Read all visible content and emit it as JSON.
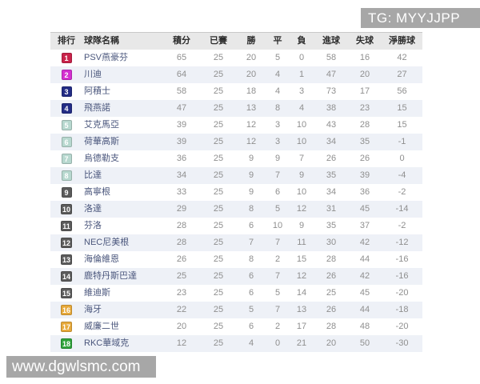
{
  "watermarks": {
    "telegram": "TG: MYYJJPP",
    "website": "www.dgwlsmc.com"
  },
  "colors": {
    "banner_bg": "#a7a7a7",
    "header_bg": "#e8e8e8",
    "row_alt_bg": "#eef1f7",
    "team_name_text": "#4a567c",
    "number_text": "#8f8f8f",
    "badge_champion": "#c9234a",
    "badge_second": "#d42fd0",
    "badge_cl": "#232c85",
    "badge_europa": "#b7d8cf",
    "badge_mid": "#5b5b5b",
    "badge_playoff": "#e7a93a",
    "badge_relegation": "#2fa23a"
  },
  "table": {
    "headers": [
      "排行",
      "球隊名稱",
      "積分",
      "已賽",
      "勝",
      "平",
      "負",
      "進球",
      "失球",
      "淨勝球"
    ],
    "rows": [
      {
        "rank": "1",
        "badge_color": "#c9234a",
        "team": "PSV燕豪芬",
        "points": "65",
        "played": "25",
        "win": "20",
        "draw": "5",
        "loss": "0",
        "gf": "58",
        "ga": "16",
        "gd": "42"
      },
      {
        "rank": "2",
        "badge_color": "#d42fd0",
        "team": "川迪",
        "points": "64",
        "played": "25",
        "win": "20",
        "draw": "4",
        "loss": "1",
        "gf": "47",
        "ga": "20",
        "gd": "27"
      },
      {
        "rank": "3",
        "badge_color": "#232c85",
        "team": "阿積士",
        "points": "58",
        "played": "25",
        "win": "18",
        "draw": "4",
        "loss": "3",
        "gf": "73",
        "ga": "17",
        "gd": "56"
      },
      {
        "rank": "4",
        "badge_color": "#232c85",
        "team": "飛燕諾",
        "points": "47",
        "played": "25",
        "win": "13",
        "draw": "8",
        "loss": "4",
        "gf": "38",
        "ga": "23",
        "gd": "15"
      },
      {
        "rank": "5",
        "badge_color": "#b7d8cf",
        "team": "艾克馬亞",
        "points": "39",
        "played": "25",
        "win": "12",
        "draw": "3",
        "loss": "10",
        "gf": "43",
        "ga": "28",
        "gd": "15"
      },
      {
        "rank": "6",
        "badge_color": "#b7d8cf",
        "team": "荷華高斯",
        "points": "39",
        "played": "25",
        "win": "12",
        "draw": "3",
        "loss": "10",
        "gf": "34",
        "ga": "35",
        "gd": "-1"
      },
      {
        "rank": "7",
        "badge_color": "#b7d8cf",
        "team": "烏德勒支",
        "points": "36",
        "played": "25",
        "win": "9",
        "draw": "9",
        "loss": "7",
        "gf": "26",
        "ga": "26",
        "gd": "0"
      },
      {
        "rank": "8",
        "badge_color": "#b7d8cf",
        "team": "比達",
        "points": "34",
        "played": "25",
        "win": "9",
        "draw": "7",
        "loss": "9",
        "gf": "35",
        "ga": "39",
        "gd": "-4"
      },
      {
        "rank": "9",
        "badge_color": "#5b5b5b",
        "team": "高寧根",
        "points": "33",
        "played": "25",
        "win": "9",
        "draw": "6",
        "loss": "10",
        "gf": "34",
        "ga": "36",
        "gd": "-2"
      },
      {
        "rank": "10",
        "badge_color": "#5b5b5b",
        "team": "洛達",
        "points": "29",
        "played": "25",
        "win": "8",
        "draw": "5",
        "loss": "12",
        "gf": "31",
        "ga": "45",
        "gd": "-14"
      },
      {
        "rank": "11",
        "badge_color": "#5b5b5b",
        "team": "芬洛",
        "points": "28",
        "played": "25",
        "win": "6",
        "draw": "10",
        "loss": "9",
        "gf": "35",
        "ga": "37",
        "gd": "-2"
      },
      {
        "rank": "12",
        "badge_color": "#5b5b5b",
        "team": "NEC尼美根",
        "points": "28",
        "played": "25",
        "win": "7",
        "draw": "7",
        "loss": "11",
        "gf": "30",
        "ga": "42",
        "gd": "-12"
      },
      {
        "rank": "13",
        "badge_color": "#5b5b5b",
        "team": "海倫維恩",
        "points": "26",
        "played": "25",
        "win": "8",
        "draw": "2",
        "loss": "15",
        "gf": "28",
        "ga": "44",
        "gd": "-16"
      },
      {
        "rank": "14",
        "badge_color": "#5b5b5b",
        "team": "鹿特丹斯巴達",
        "points": "25",
        "played": "25",
        "win": "6",
        "draw": "7",
        "loss": "12",
        "gf": "26",
        "ga": "42",
        "gd": "-16"
      },
      {
        "rank": "15",
        "badge_color": "#5b5b5b",
        "team": "維迪斯",
        "points": "23",
        "played": "25",
        "win": "6",
        "draw": "5",
        "loss": "14",
        "gf": "25",
        "ga": "45",
        "gd": "-20"
      },
      {
        "rank": "16",
        "badge_color": "#e7a93a",
        "team": "海牙",
        "points": "22",
        "played": "25",
        "win": "5",
        "draw": "7",
        "loss": "13",
        "gf": "26",
        "ga": "44",
        "gd": "-18"
      },
      {
        "rank": "17",
        "badge_color": "#e7a93a",
        "team": "威廉二世",
        "points": "20",
        "played": "25",
        "win": "6",
        "draw": "2",
        "loss": "17",
        "gf": "28",
        "ga": "48",
        "gd": "-20"
      },
      {
        "rank": "18",
        "badge_color": "#2fa23a",
        "team": "RKC華域克",
        "points": "12",
        "played": "25",
        "win": "4",
        "draw": "0",
        "loss": "21",
        "gf": "20",
        "ga": "50",
        "gd": "-30"
      }
    ]
  }
}
